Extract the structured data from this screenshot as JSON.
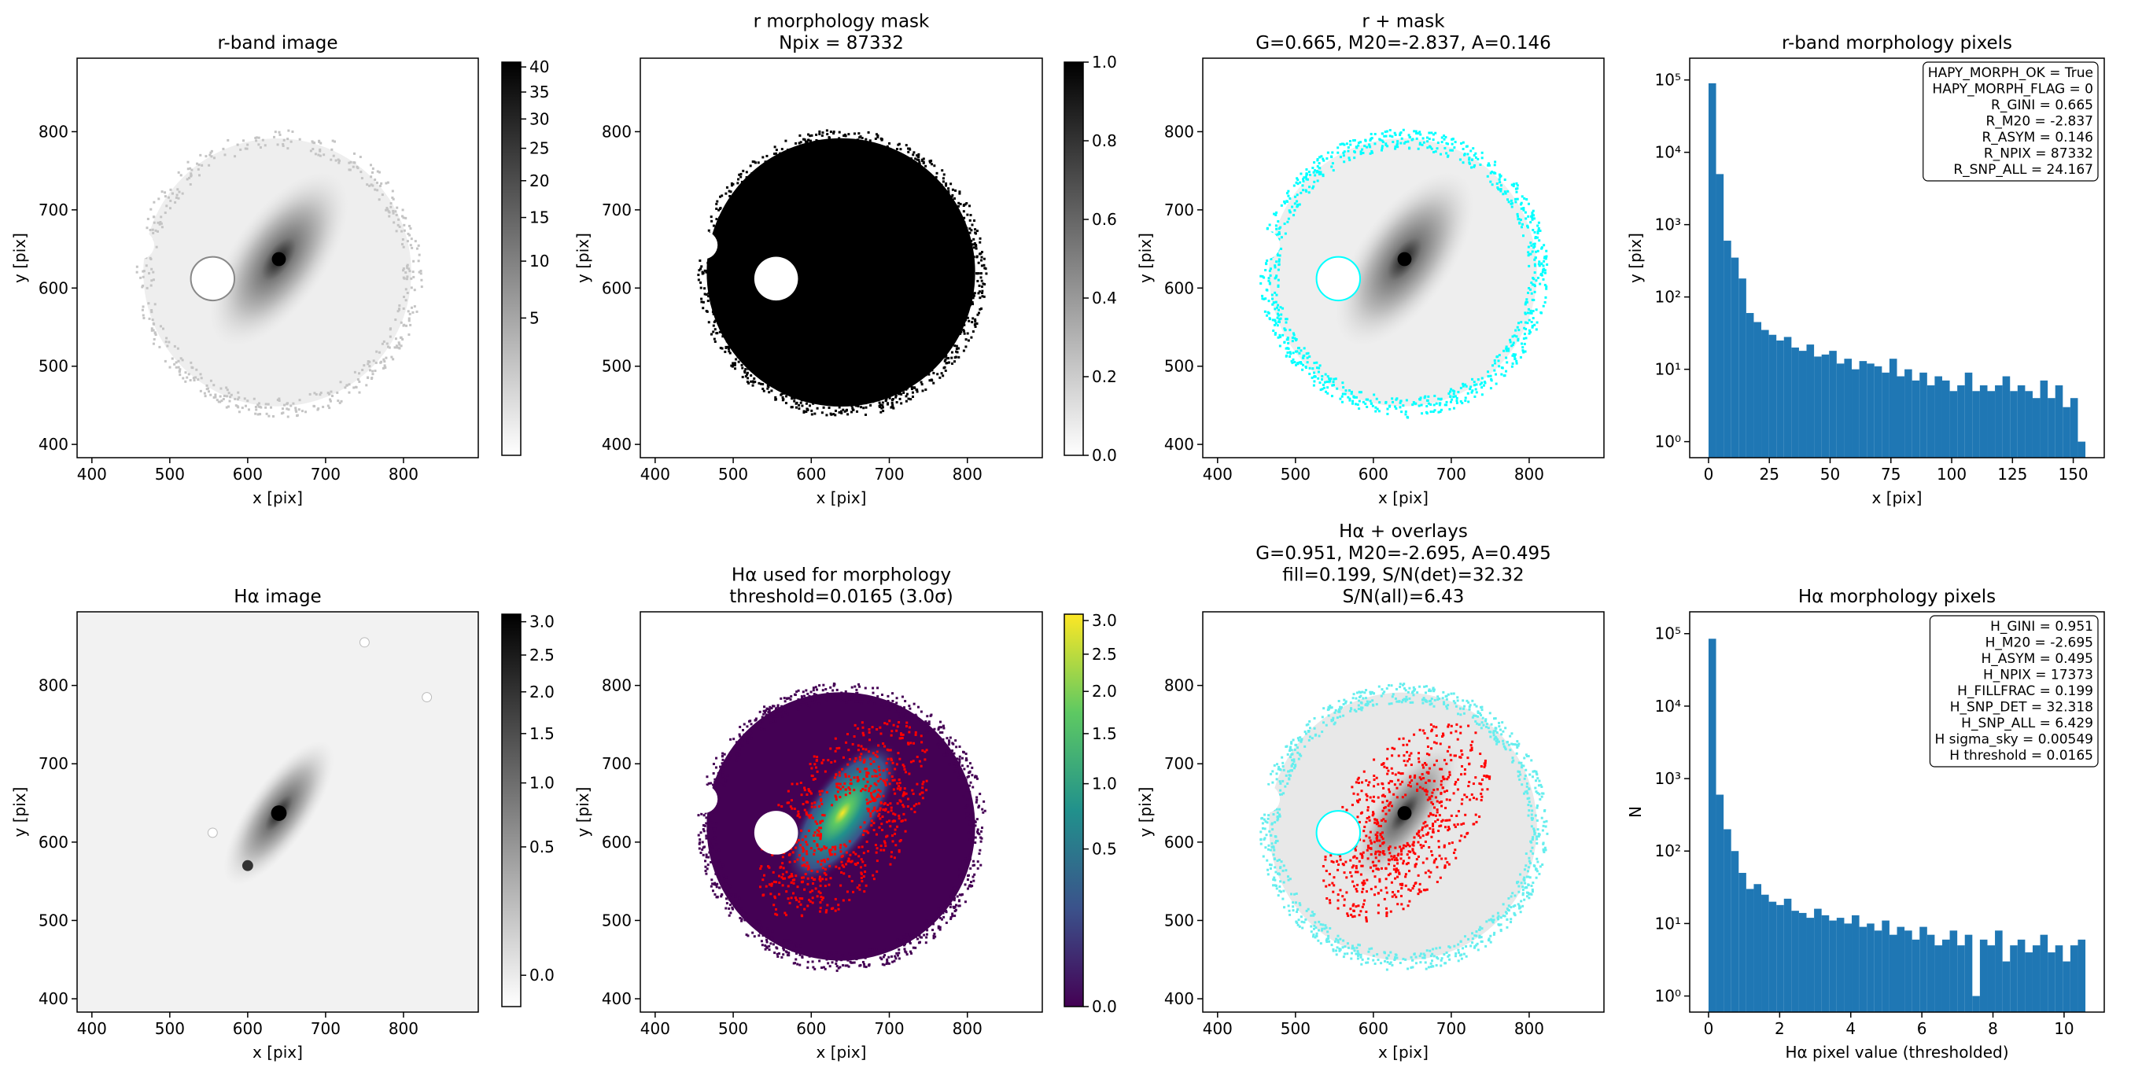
{
  "chart_data": [
    {
      "type": "image",
      "title": [
        "r-band image"
      ],
      "xlabel": "x [pix]",
      "ylabel": "y [pix]",
      "xlim": [
        381,
        896
      ],
      "ylim": [
        383,
        894
      ],
      "xticks": [
        400,
        500,
        600,
        700,
        800
      ],
      "yticks": [
        400,
        500,
        600,
        700,
        800
      ],
      "colorbar": {
        "cmap": "gray_r",
        "scale": "sqrt",
        "lim": [
          0,
          41
        ],
        "ticks": [
          5,
          10,
          15,
          20,
          25,
          30,
          35,
          40
        ]
      }
    },
    {
      "type": "image",
      "title": [
        "r morphology mask",
        "Npix = 87332"
      ],
      "xlabel": "x [pix]",
      "ylabel": "y [pix]",
      "xlim": [
        381,
        896
      ],
      "ylim": [
        383,
        894
      ],
      "xticks": [
        400,
        500,
        600,
        700,
        800
      ],
      "yticks": [
        400,
        500,
        600,
        700,
        800
      ],
      "colorbar": {
        "cmap": "gray_r",
        "scale": "linear",
        "lim": [
          0,
          1
        ],
        "ticks": [
          {
            "value": 0,
            "label": "0.0"
          },
          0.2,
          0.4,
          0.6,
          0.8,
          {
            "value": 1,
            "label": "1.0"
          }
        ]
      }
    },
    {
      "type": "image",
      "title": [
        "r + mask",
        "G=0.665, M20=-2.837, A=0.146"
      ],
      "xlabel": "x [pix]",
      "ylabel": "y [pix]",
      "xlim": [
        381,
        896
      ],
      "ylim": [
        383,
        894
      ],
      "xticks": [
        400,
        500,
        600,
        700,
        800
      ],
      "yticks": [
        400,
        500,
        600,
        700,
        800
      ]
    },
    {
      "type": "histogram",
      "title": [
        "r-band morphology pixels"
      ],
      "xlabel": "x [pix]",
      "ylabel": "y [pix]",
      "color": "#1f77b4",
      "yscale": "log",
      "bins": [
        0,
        3.1,
        6.2,
        9.3,
        12.4,
        15.5,
        18.6,
        21.7,
        24.8,
        27.9,
        31,
        34.1,
        37.2,
        40.3,
        43.4,
        46.5,
        49.6,
        52.7,
        55.8,
        58.9,
        62,
        65.1,
        68.2,
        71.3,
        74.4,
        77.5,
        80.6,
        83.7,
        86.8,
        89.9,
        93,
        96.1,
        99.2,
        102.3,
        105.4,
        108.5,
        111.6,
        114.7,
        117.8,
        120.9,
        124,
        127.1,
        130.2,
        133.3,
        136.4,
        139.5,
        142.6,
        145.7,
        148.8,
        151.9,
        155
      ],
      "counts": [
        90000,
        5000,
        600,
        350,
        180,
        60,
        45,
        35,
        30,
        25,
        28,
        20,
        18,
        22,
        15,
        16,
        18,
        12,
        14,
        10,
        13,
        12,
        11,
        9,
        14,
        8,
        10,
        7,
        9,
        6,
        8,
        7,
        5,
        6,
        9,
        5,
        6,
        5,
        6,
        8,
        5,
        6,
        5,
        4,
        7,
        4,
        6,
        3,
        4,
        1
      ],
      "xlim": [
        -7.75,
        162.75
      ],
      "ylim": [
        0.6,
        200000
      ],
      "xticks": [
        0,
        25,
        50,
        75,
        100,
        125,
        150
      ],
      "yticks": [
        {
          "value": 1,
          "label": "10⁰"
        },
        {
          "value": 10,
          "label": "10¹"
        },
        {
          "value": 100,
          "label": "10²"
        },
        {
          "value": 1000,
          "label": "10³"
        },
        {
          "value": 10000,
          "label": "10⁴"
        },
        {
          "value": 100000,
          "label": "10⁵"
        }
      ],
      "annotation": [
        "HAPY_MORPH_OK = True",
        "HAPY_MORPH_FLAG = 0",
        "R_GINI = 0.665",
        "R_M20 = -2.837",
        "R_ASYM = 0.146",
        "R_NPIX = 87332",
        "R_SNP_ALL = 24.167"
      ]
    },
    {
      "type": "image",
      "title": [
        "Hα image"
      ],
      "xlabel": "x [pix]",
      "ylabel": "y [pix]",
      "xlim": [
        381,
        896
      ],
      "ylim": [
        383,
        894
      ],
      "xticks": [
        400,
        500,
        600,
        700,
        800
      ],
      "yticks": [
        400,
        500,
        600,
        700,
        800
      ],
      "colorbar": {
        "cmap": "gray_r",
        "scale": "sqrt",
        "lim": [
          -0.02,
          3.12
        ],
        "ticks": [
          {
            "value": 0,
            "label": "0.0"
          },
          0.5,
          {
            "value": 1,
            "label": "1.0"
          },
          1.5,
          {
            "value": 2,
            "label": "2.0"
          },
          2.5,
          {
            "value": 3,
            "label": "3.0"
          }
        ]
      }
    },
    {
      "type": "image",
      "title": [
        "Hα used for morphology",
        "threshold=0.0165 (3.0σ)"
      ],
      "xlabel": "x [pix]",
      "ylabel": "y [pix]",
      "xlim": [
        381,
        896
      ],
      "ylim": [
        383,
        894
      ],
      "xticks": [
        400,
        500,
        600,
        700,
        800
      ],
      "yticks": [
        400,
        500,
        600,
        700,
        800
      ],
      "colorbar": {
        "cmap": "viridis",
        "scale": "sqrt",
        "lim": [
          0,
          3.1
        ],
        "ticks": [
          {
            "value": 0,
            "label": "0.0"
          },
          0.5,
          {
            "value": 1,
            "label": "1.0"
          },
          1.5,
          {
            "value": 2,
            "label": "2.0"
          },
          2.5,
          {
            "value": 3,
            "label": "3.0"
          }
        ]
      }
    },
    {
      "type": "image",
      "title": [
        "Hα + overlays",
        "G=0.951, M20=-2.695, A=0.495",
        "fill=0.199, S/N(det)=32.32",
        "S/N(all)=6.43"
      ],
      "xlabel": "x [pix]",
      "ylabel": "y [pix]",
      "xlim": [
        381,
        896
      ],
      "ylim": [
        383,
        894
      ],
      "xticks": [
        400,
        500,
        600,
        700,
        800
      ],
      "yticks": [
        400,
        500,
        600,
        700,
        800
      ]
    },
    {
      "type": "histogram",
      "title": [
        "Hα morphology pixels"
      ],
      "xlabel": "Hα pixel value (thresholded)",
      "ylabel": "N",
      "color": "#1f77b4",
      "yscale": "log",
      "bins": [
        0,
        0.212,
        0.424,
        0.636,
        0.848,
        1.06,
        1.272,
        1.484,
        1.696,
        1.908,
        2.12,
        2.332,
        2.544,
        2.756,
        2.968,
        3.18,
        3.392,
        3.604,
        3.816,
        4.028,
        4.24,
        4.452,
        4.664,
        4.876,
        5.088,
        5.3,
        5.512,
        5.724,
        5.936,
        6.148,
        6.36,
        6.572,
        6.784,
        6.996,
        7.208,
        7.42,
        7.632,
        7.844,
        8.056,
        8.268,
        8.48,
        8.692,
        8.904,
        9.116,
        9.328,
        9.54,
        9.752,
        9.964,
        10.176,
        10.388,
        10.6
      ],
      "counts": [
        85000,
        600,
        200,
        100,
        50,
        30,
        35,
        25,
        20,
        18,
        22,
        15,
        14,
        12,
        16,
        13,
        11,
        12,
        10,
        13,
        9,
        10,
        8,
        11,
        7,
        9,
        8,
        6,
        9,
        7,
        5,
        6,
        8,
        5,
        7,
        1,
        6,
        5,
        8,
        3,
        5,
        6,
        4,
        5,
        7,
        4,
        5,
        3,
        5,
        6
      ],
      "xlim": [
        -0.53,
        11.13
      ],
      "ylim": [
        0.6,
        200000
      ],
      "xticks": [
        0,
        2,
        4,
        6,
        8,
        10
      ],
      "yticks": [
        {
          "value": 1,
          "label": "10⁰"
        },
        {
          "value": 10,
          "label": "10¹"
        },
        {
          "value": 100,
          "label": "10²"
        },
        {
          "value": 1000,
          "label": "10³"
        },
        {
          "value": 10000,
          "label": "10⁴"
        },
        {
          "value": 100000,
          "label": "10⁵"
        }
      ],
      "annotation": [
        "H_GINI = 0.951",
        "H_M20 = -2.695",
        "H_ASYM = 0.495",
        "H_NPIX = 17373",
        "H_FILLFRAC = 0.199",
        "H_SNP_DET = 32.318",
        "H_SNP_ALL = 6.429",
        "H sigma_sky = 0.00549",
        "H threshold = 0.0165"
      ]
    }
  ]
}
